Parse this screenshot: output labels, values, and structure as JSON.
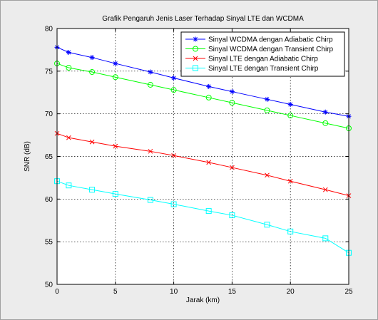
{
  "chart_data": {
    "type": "line",
    "title": "Grafik Pengaruh Jenis Laser Terhadap Sinyal LTE dan WCDMA",
    "xlabel": "Jarak (km)",
    "ylabel": "SNR (dB)",
    "xlim": [
      0,
      25
    ],
    "ylim": [
      50,
      80
    ],
    "xticks": [
      0,
      5,
      10,
      15,
      20,
      25
    ],
    "yticks": [
      50,
      55,
      60,
      65,
      70,
      75,
      80
    ],
    "grid": true,
    "legend_position": "top-right",
    "series": [
      {
        "name": "Sinyal WCDMA dengan Adiabatic Chirp",
        "color": "#0000ff",
        "marker": "star",
        "x": [
          0,
          1,
          3,
          5,
          8,
          10,
          13,
          15,
          18,
          20,
          23,
          25
        ],
        "y": [
          77.8,
          77.2,
          76.6,
          75.9,
          74.9,
          74.2,
          73.2,
          72.6,
          71.7,
          71.1,
          70.2,
          69.7
        ]
      },
      {
        "name": "Sinyal WCDMA dengan Transient Chirp",
        "color": "#00ff00",
        "marker": "circle",
        "x": [
          0,
          1,
          3,
          5,
          8,
          10,
          13,
          15,
          18,
          20,
          23,
          25
        ],
        "y": [
          75.9,
          75.4,
          74.9,
          74.3,
          73.4,
          72.8,
          71.9,
          71.3,
          70.4,
          69.8,
          68.9,
          68.3
        ]
      },
      {
        "name": "Sinyal LTE dengan Adiabatic Chirp",
        "color": "#ff0000",
        "marker": "x",
        "x": [
          0,
          1,
          3,
          5,
          8,
          10,
          13,
          15,
          18,
          20,
          23,
          25
        ],
        "y": [
          67.7,
          67.2,
          66.7,
          66.2,
          65.6,
          65.1,
          64.3,
          63.7,
          62.8,
          62.1,
          61.1,
          60.4
        ]
      },
      {
        "name": "Sinyal LTE dengan Transient Chirp",
        "color": "#00ffff",
        "marker": "square",
        "x": [
          0,
          1,
          3,
          5,
          8,
          10,
          13,
          15,
          18,
          20,
          23,
          25
        ],
        "y": [
          62.1,
          61.6,
          61.1,
          60.6,
          59.9,
          59.4,
          58.6,
          58.1,
          57.0,
          56.2,
          55.4,
          53.7
        ]
      }
    ]
  }
}
